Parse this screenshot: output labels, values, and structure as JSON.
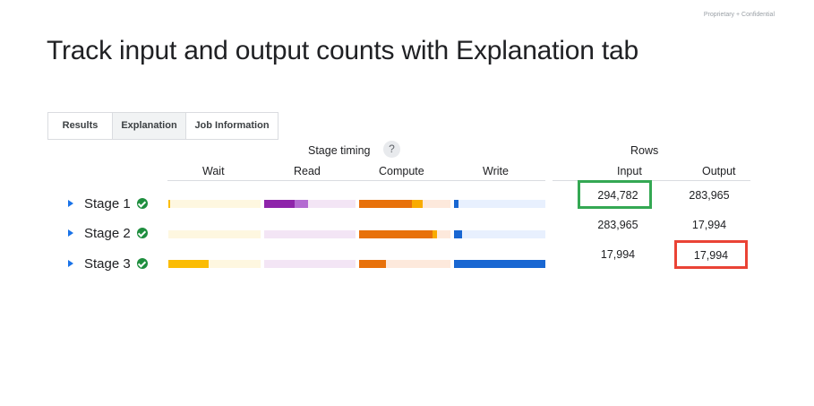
{
  "header": {
    "confidential": "Proprietary + Confidential",
    "title": "Track input and output counts with Explanation tab"
  },
  "tabs": [
    {
      "label": "Results"
    },
    {
      "label": "Explanation",
      "active": true
    },
    {
      "label": "Job Information"
    }
  ],
  "stage_timing": {
    "title": "Stage timing",
    "help": "?",
    "columns": [
      "Wait",
      "Read",
      "Compute",
      "Write"
    ]
  },
  "rows_section": {
    "title": "Rows",
    "columns": [
      "Input",
      "Output"
    ]
  },
  "stages": [
    {
      "label": "Stage 1",
      "input": "294,782",
      "output": "283,965",
      "status": "complete"
    },
    {
      "label": "Stage 2",
      "input": "283,965",
      "output": "17,994",
      "status": "complete"
    },
    {
      "label": "Stage 3",
      "input": "17,994",
      "output": "17,994",
      "status": "complete"
    }
  ],
  "colors": {
    "wait": "#fbbc04",
    "wait_light": "#fef7e0",
    "read": "#8e24aa",
    "read_mid": "#b36bd1",
    "read_light": "#f3e5f5",
    "compute": "#e8710a",
    "compute_mid": "#f9ab00",
    "compute_light": "#fde9dc",
    "write": "#1967d2",
    "write_light": "#e8f0fe",
    "highlight_input": "#34a853",
    "highlight_output": "#ea4335"
  }
}
